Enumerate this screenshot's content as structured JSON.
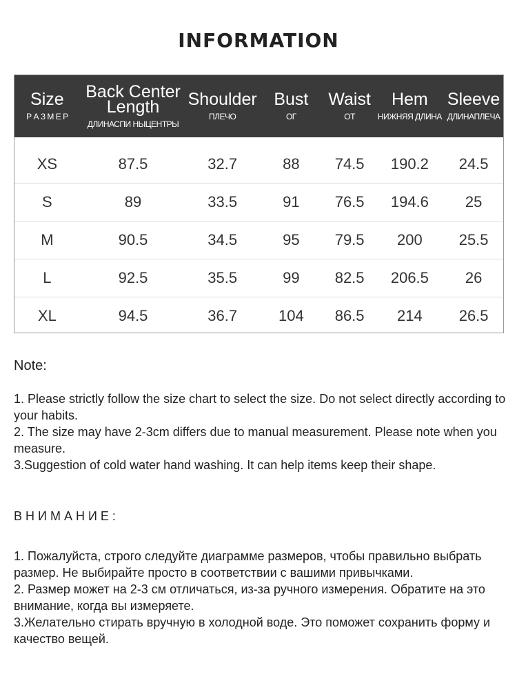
{
  "title": "INFORMATION",
  "table": {
    "headers": [
      {
        "en": "Size",
        "ru": "Р А З М Е Р"
      },
      {
        "en": "Back Center Length",
        "ru": "ДЛИНАСПИ НЫЦЕНТРЫ"
      },
      {
        "en": "Shoulder",
        "ru": "ПЛЕЧО"
      },
      {
        "en": "Bust",
        "ru": "ОГ"
      },
      {
        "en": "Waist",
        "ru": "ОТ"
      },
      {
        "en": "Hem",
        "ru": "НИЖНЯЯ ДЛИНА"
      },
      {
        "en": "Sleeve",
        "ru": "ДЛИНАПЛЕЧА"
      }
    ],
    "rows": [
      [
        "XS",
        "87.5",
        "32.7",
        "88",
        "74.5",
        "190.2",
        "24.5"
      ],
      [
        "S",
        "89",
        "33.5",
        "91",
        "76.5",
        "194.6",
        "25"
      ],
      [
        "M",
        "90.5",
        "34.5",
        "95",
        "79.5",
        "200",
        "25.5"
      ],
      [
        "L",
        "92.5",
        "35.5",
        "99",
        "82.5",
        "206.5",
        "26"
      ],
      [
        "XL",
        "94.5",
        "36.7",
        "104",
        "86.5",
        "214",
        "26.5"
      ]
    ]
  },
  "note_en": {
    "heading": "Note:",
    "items": [
      "1. Please strictly follow the size chart  to select the size. Do not select directly according to your habits.",
      "2. The size may have 2-3cm differs due to manual measurement. Please note when you measure.",
      "3.Suggestion of cold water hand washing. It can help items keep their shape."
    ]
  },
  "note_ru": {
    "heading": "В Н И М А Н И Е :",
    "items": [
      "1. Пожалуйста, строго следуйте диаграмме размеров, чтобы правильно выбрать размер. Не выбирайте просто в соответствии с вашими привычками.",
      "2. Размер может на 2-3 см отличаться, из-за ручного измерения. Обратите на это внимание, когда вы измеряете.",
      "3.Желательно стирать вручную в холодной воде. Это поможет сохранить форму и качество вещей."
    ]
  }
}
